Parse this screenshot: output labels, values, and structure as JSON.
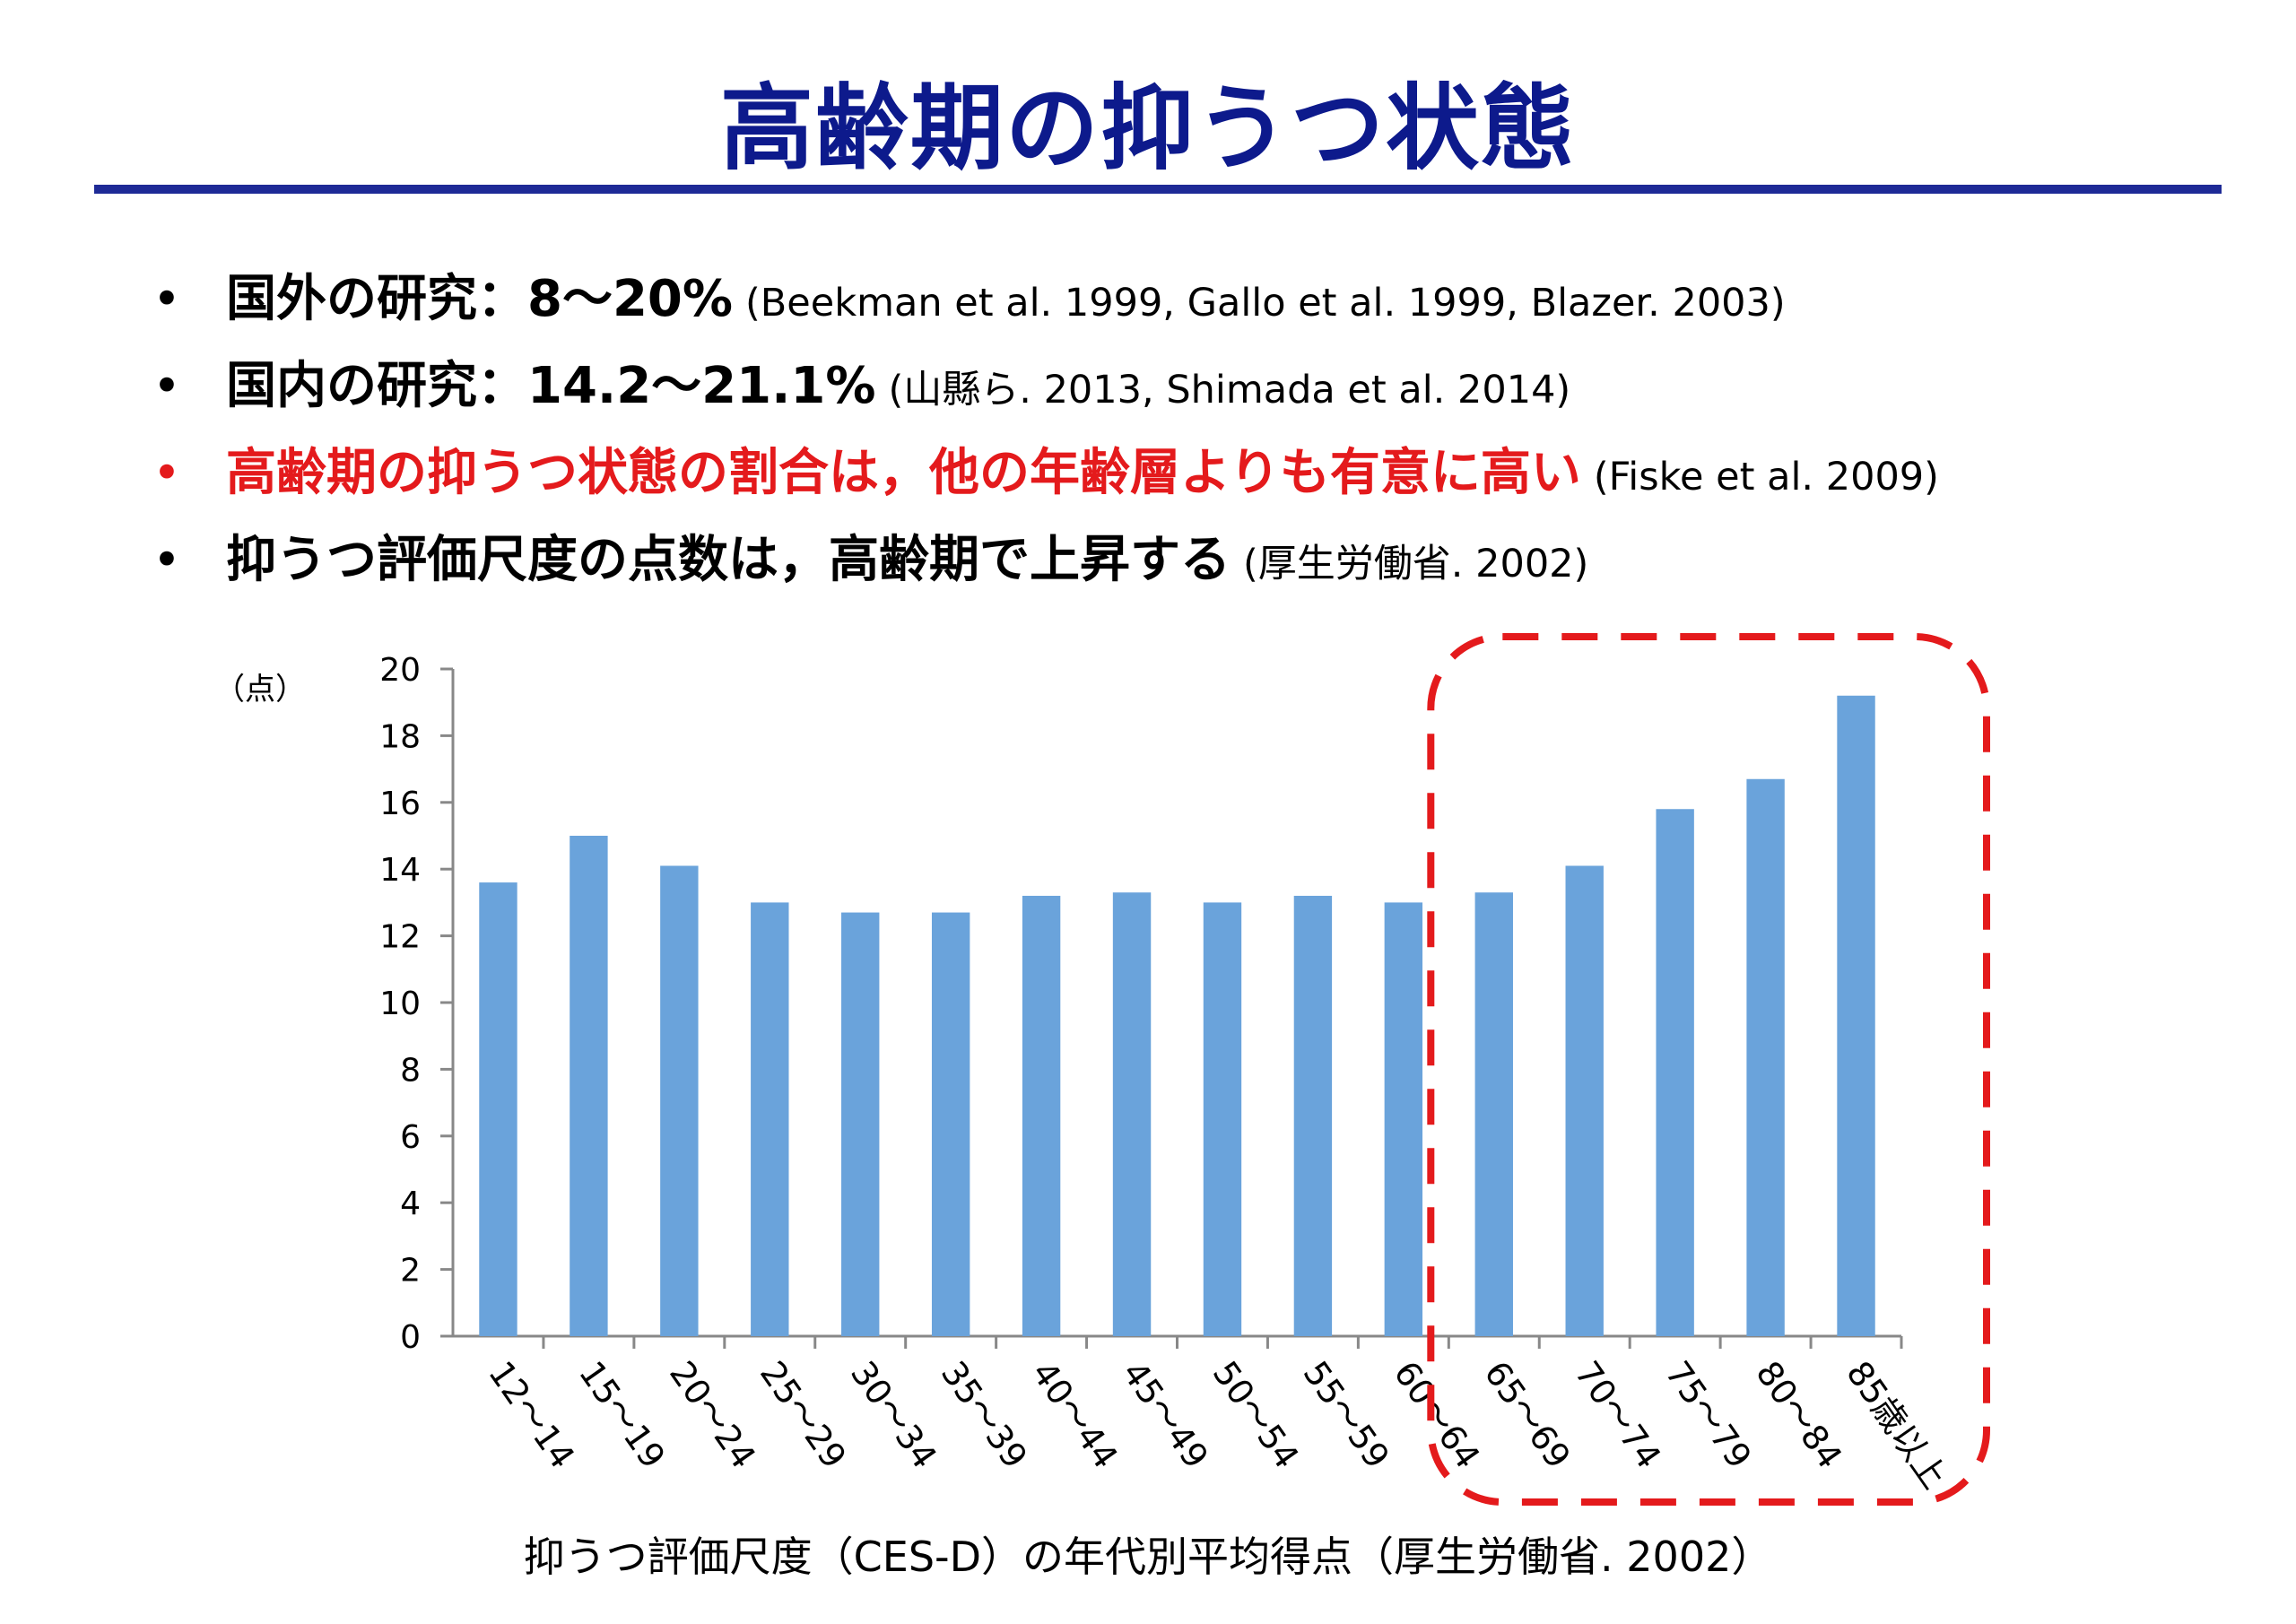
{
  "title": "高齢期の抑うつ状態",
  "bullets": [
    {
      "main": "国外の研究：8〜20%",
      "cite": "(Beekman et al. 1999, Gallo et al. 1999, Blazer. 2003)",
      "color": "#000000"
    },
    {
      "main": "国内の研究：14.2〜21.1%",
      "cite": "(山縣ら. 2013, Shimada et al. 2014)",
      "color": "#000000"
    },
    {
      "main": "高齢期の抑うつ状態の割合は，他の年齢層よりも有意に高い",
      "cite": "(Fiske et al. 2009)",
      "color": "#e41a1c"
    },
    {
      "main": "抑うつ評価尺度の点数は，高齢期で上昇する",
      "cite": "(厚生労働省. 2002)",
      "color": "#000000"
    }
  ],
  "colors": {
    "title": "#0d1a8c",
    "rule": "#1e2a96",
    "bar": "#6aa3db",
    "highlight": "#e41a1c"
  },
  "chart_data": {
    "type": "bar",
    "title": "",
    "ylabel": "（点）",
    "xlabel": "",
    "ylim": [
      0,
      20
    ],
    "yticks": [
      "0",
      "2",
      "4",
      "6",
      "8",
      "10",
      "12",
      "14",
      "16",
      "18",
      "20"
    ],
    "grid": false,
    "categories": [
      "12～14",
      "15～19",
      "20～24",
      "25～29",
      "30～34",
      "35～39",
      "40～44",
      "45～49",
      "50～54",
      "55～59",
      "60～64",
      "65～69",
      "70～74",
      "75～79",
      "80～84",
      "85歳以上"
    ],
    "values": [
      13.6,
      15.0,
      14.1,
      13.0,
      12.7,
      12.7,
      13.2,
      13.3,
      13.0,
      13.2,
      13.0,
      13.3,
      14.1,
      15.8,
      16.7,
      19.2
    ],
    "highlight_categories": [
      "65～69",
      "70～74",
      "75～79",
      "80～84",
      "85歳以上"
    ]
  },
  "caption": "抑うつ評価尺度（CES-D）の年代別平均得点（厚生労働省. 2002）"
}
